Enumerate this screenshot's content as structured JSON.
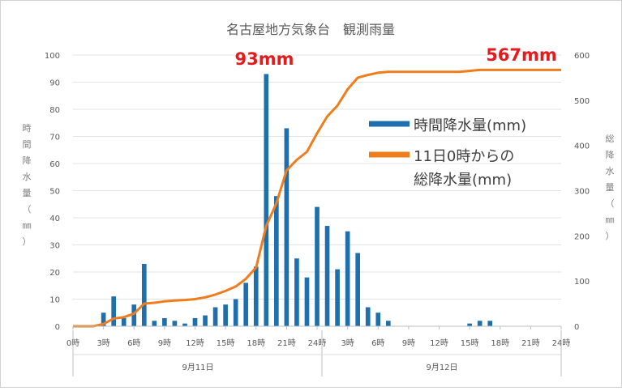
{
  "chart_data": {
    "type": "bar+line",
    "title": "名古屋地方気象台　観測雨量",
    "callouts": [
      "93mm",
      "567mm"
    ],
    "left_axis": {
      "label_chars": [
        "時",
        "間",
        "降",
        "水",
        "量",
        "（",
        "㎜",
        "）"
      ],
      "range": [
        0,
        100
      ],
      "ticks": [
        "0",
        "10",
        "20",
        "30",
        "40",
        "50",
        "60",
        "70",
        "80",
        "90",
        "100"
      ]
    },
    "right_axis": {
      "label_chars": [
        "総",
        "降",
        "水",
        "量",
        "（",
        "㎜",
        "）"
      ],
      "range": [
        0,
        600
      ],
      "ticks": [
        "0",
        "100",
        "200",
        "300",
        "400",
        "500",
        "600"
      ]
    },
    "x_axis": {
      "range_hours": [
        0,
        48
      ],
      "tick_labels": [
        "0時",
        "3時",
        "6時",
        "9時",
        "12時",
        "15時",
        "18時",
        "21時",
        "24時",
        "3時",
        "6時",
        "9時",
        "12時",
        "15時",
        "18時",
        "21時",
        "24時"
      ],
      "date_labels": [
        "9月11日",
        "9月12日"
      ]
    },
    "legend": {
      "position": "top-right",
      "bar_label": "時間降水量(mm)",
      "line_label_1": "11日0時からの",
      "line_label_2": "総降水量(mm)"
    },
    "colors": {
      "bar": "#1f6fad",
      "line": "#ef7d1d",
      "callout": "#e41a1c"
    },
    "series": [
      {
        "type": "bar",
        "hours": [
          3,
          4,
          5,
          6,
          7,
          8,
          9,
          10,
          11,
          12,
          13,
          14,
          15,
          16,
          17,
          18,
          19,
          20,
          21,
          22,
          23,
          24,
          25,
          26,
          27,
          28,
          29,
          30,
          31,
          39,
          40,
          41
        ],
        "values": [
          5,
          11,
          3,
          8,
          23,
          2,
          3,
          2,
          1,
          3,
          4,
          7,
          8,
          10,
          16,
          22,
          93,
          48,
          73,
          25,
          18,
          44,
          37,
          21,
          35,
          27,
          7,
          5,
          2,
          1,
          2,
          2
        ]
      },
      {
        "type": "line",
        "hours": [
          0,
          2,
          3,
          4,
          5,
          6,
          7,
          8,
          9,
          10,
          11,
          12,
          13,
          14,
          15,
          16,
          17,
          18,
          19,
          20,
          21,
          22,
          23,
          24,
          25,
          26,
          27,
          28,
          29,
          30,
          31,
          32,
          34,
          36,
          38,
          40,
          42,
          44,
          46,
          48
        ],
        "values": [
          0,
          0,
          5,
          17,
          20,
          28,
          50,
          52,
          55,
          57,
          58,
          60,
          64,
          70,
          78,
          88,
          105,
          130,
          222,
          272,
          345,
          368,
          386,
          427,
          464,
          488,
          524,
          550,
          556,
          561,
          563,
          563,
          563,
          563,
          563,
          567,
          567,
          567,
          567,
          567
        ]
      }
    ]
  }
}
